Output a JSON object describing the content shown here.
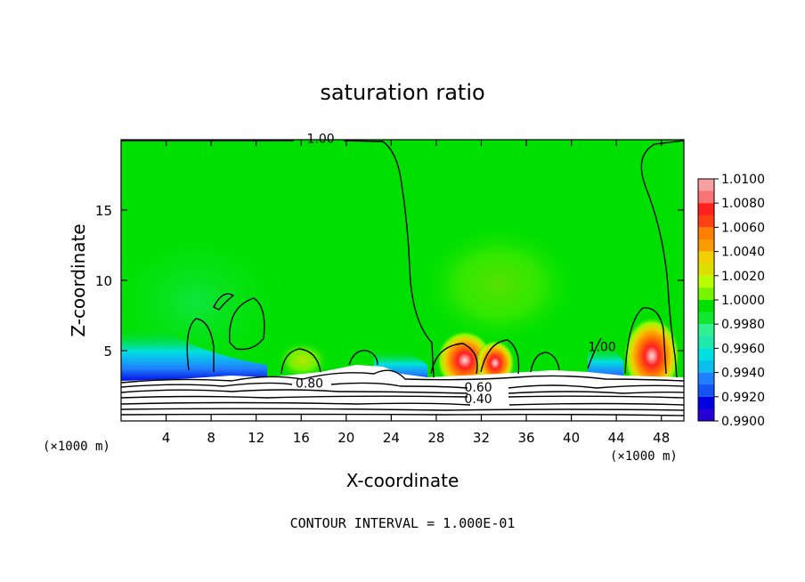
{
  "chart_data": {
    "type": "contour",
    "title": "saturation ratio",
    "xlabel": "X-coordinate",
    "ylabel": "Z-coordinate",
    "x_unit_left": "(×1000 m)",
    "x_unit_right": "(×1000 m)",
    "xlim": [
      0,
      50
    ],
    "ylim": [
      0,
      20
    ],
    "x_ticks": [
      4,
      8,
      12,
      16,
      20,
      24,
      28,
      32,
      36,
      40,
      44,
      48
    ],
    "y_ticks": [
      5,
      10,
      15
    ],
    "footer": "CONTOUR INTERVAL = 1.000E-01",
    "contour_labels": [
      {
        "text": "1.00",
        "x": 16.5,
        "y": 19.9
      },
      {
        "text": "1.00",
        "x": 41.5,
        "y": 5.1
      },
      {
        "text": "0.80",
        "x": 15.5,
        "y": 2.5
      },
      {
        "text": "0.60",
        "x": 30.5,
        "y": 2.2
      },
      {
        "text": "0.40",
        "x": 30.5,
        "y": 1.4
      }
    ],
    "colorbar": {
      "levels": [
        "1.0100",
        "1.0080",
        "1.0060",
        "1.0040",
        "1.0020",
        "1.0000",
        "0.9980",
        "0.9960",
        "0.9940",
        "0.9920",
        "0.9900"
      ],
      "colors": [
        "#f6a0a0",
        "#ff2020",
        "#ff8000",
        "#f0d000",
        "#b8ff00",
        "#00e000",
        "#30f090",
        "#00e0e0",
        "#2080ff",
        "#0000e0",
        "#7000c0"
      ]
    }
  }
}
